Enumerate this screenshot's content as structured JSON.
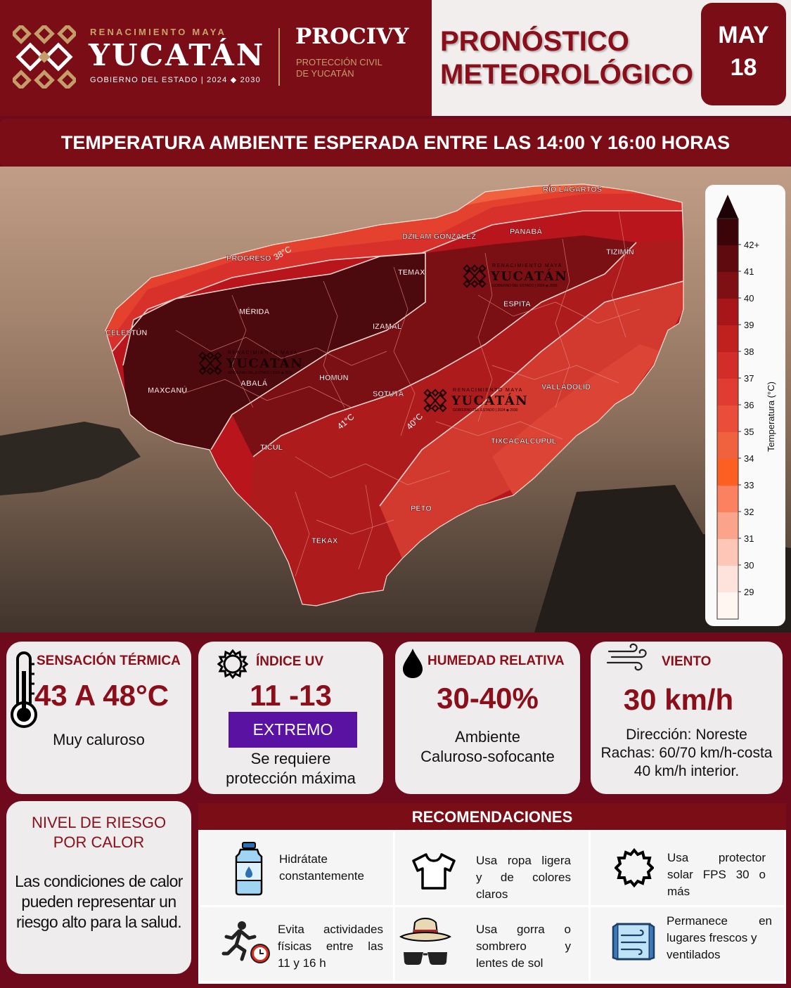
{
  "header": {
    "tagline": "RENACIMIENTO MAYA",
    "state": "YUCATÁN",
    "government": "GOBIERNO DEL ESTADO | 2024 ◆ 2030",
    "agency": "PROCIVY",
    "agency_line1": "PROTECCIÓN CIVIL",
    "agency_line2": "DE YUCATÁN",
    "title_line1": "PRONÓSTICO",
    "title_line2": "METEOROLÓGICO",
    "month": "MAY",
    "day": "18"
  },
  "banner": "TEMPERATURA AMBIENTE ESPERADA ENTRE LAS 14:00 Y 16:00 HORAS",
  "map": {
    "places": [
      "RÍO LAGARTOS",
      "PANABÁ",
      "DZILAM GONZÁLEZ",
      "TIZIMÍN",
      "PROGRESO",
      "TEMAX",
      "ESPITA",
      "MÉRIDA",
      "IZAMAL",
      "CELESTÚN",
      "HOMÚN",
      "VALLADOLID",
      "MAXCANÚ",
      "ABALÁ",
      "SOTUTA",
      "TIXCACALCUPUL",
      "TICUL",
      "PETO",
      "TEKAX"
    ],
    "isotherms": [
      "38°C",
      "41°C",
      "40°C"
    ],
    "watermark_tagline": "RENACIMIENTO MAYA",
    "watermark_title": "YUCATÁN",
    "watermark_sub": "GOBIERNO DEL ESTADO | 2024 ◆ 2030"
  },
  "legend": {
    "axis_label": "Temperatura (°C)",
    "ticks": [
      "42+",
      "41",
      "40",
      "39",
      "38",
      "37",
      "36",
      "35",
      "34",
      "33",
      "32",
      "31",
      "30",
      "29"
    ],
    "colors": [
      "#3a0408",
      "#5e0a0f",
      "#7e0f13",
      "#a8161a",
      "#c0211f",
      "#d22d29",
      "#e13c31",
      "#ea4e3a",
      "#f0623e",
      "#fd5e21",
      "#fb8160",
      "#fca48b",
      "#fdc6b7",
      "#fde3db",
      "#fff5f1"
    ]
  },
  "cards": {
    "thermal": {
      "title": "SENSACIÓN TÉRMICA",
      "value": "43 A 48°C",
      "desc": "Muy caluroso"
    },
    "uv": {
      "title": "ÍNDICE  UV",
      "value": "11 -13",
      "badge": "EXTREMO",
      "desc_line1": "Se requiere",
      "desc_line2": "protección máxima"
    },
    "humidity": {
      "title": "HUMEDAD RELATIVA",
      "value": "30-40%",
      "desc_line1": "Ambiente",
      "desc_line2": "Caluroso-sofocante"
    },
    "wind": {
      "title": "VIENTO",
      "value": "30 km/h",
      "line1": "Dirección: Noreste",
      "line2": "Rachas: 60/70 km/h-costa",
      "line3": "40 km/h interior."
    },
    "risk": {
      "title_line1": "NIVEL DE RIESGO",
      "title_line2": "POR CALOR",
      "text_line1": "Las condiciones de calor",
      "text_line2": "pueden representar un",
      "text_line3": "riesgo alto para la salud."
    }
  },
  "recommendations": {
    "title": "RECOMENDACIONES",
    "items": [
      {
        "icon": "water-bottle-icon",
        "line1": "Hidrátate",
        "line2": "constantemente"
      },
      {
        "icon": "tshirt-icon",
        "line1": "Usa ropa ligera",
        "line2": "y de colores",
        "line3": "claros"
      },
      {
        "icon": "sun-icon",
        "line1": "Usa protector",
        "line2": "solar FPS 30 o",
        "line3": "más"
      },
      {
        "icon": "runner-clock-icon",
        "line1": "Evita actividades",
        "line2": "físicas entre las",
        "line3": "11 y 16 h"
      },
      {
        "icon": "hat-sunglasses-icon",
        "line1": "Usa gorra o",
        "line2": "sombrero y",
        "line3": "lentes de sol"
      },
      {
        "icon": "window-icon",
        "line1": "Permanece en",
        "line2": "lugares frescos y",
        "line3": "ventilados"
      }
    ]
  }
}
